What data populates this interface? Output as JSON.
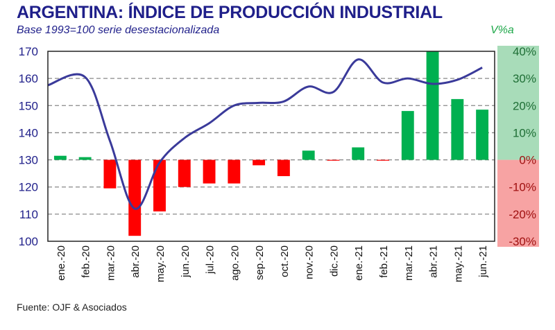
{
  "chart_data": {
    "type": "bar+line",
    "title": "ARGENTINA: ÍNDICE DE PRODUCCIÓN INDUSTRIAL",
    "subtitle": "Base 1993=100 serie desestacionalizada",
    "right_axis_label": "V%a",
    "source": "Fuente: OJF & Asociados",
    "categories": [
      "ene.-20",
      "feb.-20",
      "mar.-20",
      "abr.-20",
      "may.-20",
      "jun.-20",
      "jul.-20",
      "ago.-20",
      "sep.-20",
      "oct.-20",
      "nov.-20",
      "dic.-20",
      "ene.-21",
      "feb.-21",
      "mar.-21",
      "abr.-21",
      "may.-21",
      "jun.-21"
    ],
    "left_axis": {
      "min": 100,
      "max": 170,
      "ticks": [
        "100",
        "110",
        "120",
        "130",
        "140",
        "150",
        "160",
        "170"
      ]
    },
    "right_axis": {
      "min": -30,
      "max": 40,
      "ticks": [
        "-30%",
        "-20%",
        "-10%",
        "0%",
        "10%",
        "20%",
        "30%",
        "40%"
      ]
    },
    "line_series": {
      "axis": "left",
      "color": "#3a3a9a",
      "values": [
        157.5,
        160.5,
        137,
        112,
        129,
        138,
        143.5,
        150,
        151,
        151.5,
        157,
        155,
        167,
        158.5,
        160,
        158,
        159.5,
        164
      ]
    },
    "bar_series": {
      "axis": "right",
      "positive_color": "#00b050",
      "negative_color": "#ff0000",
      "values": [
        1.5,
        1,
        -10.5,
        -28,
        -19,
        -10,
        -8.7,
        -8.7,
        -2,
        -6,
        3.4,
        -0.3,
        4.6,
        -0.3,
        18,
        40,
        22.4,
        18.5
      ]
    },
    "grid": true,
    "band_colors": {
      "positive": "#a8dcb9",
      "negative": "#f7a3a3"
    }
  }
}
